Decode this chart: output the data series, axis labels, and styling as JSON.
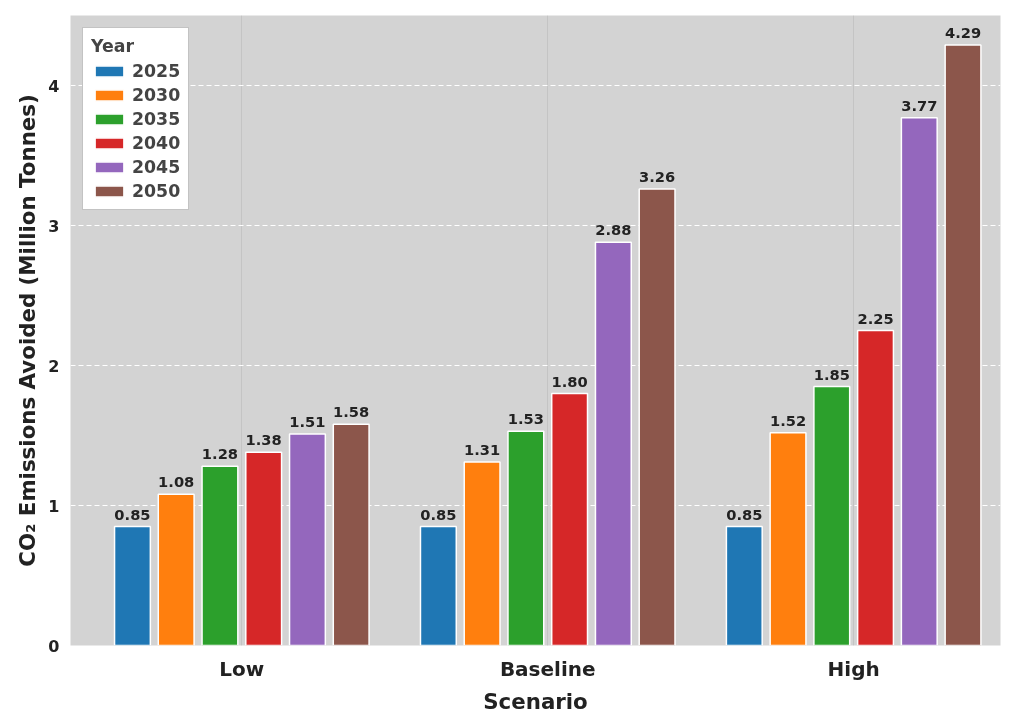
{
  "chart_data": {
    "type": "bar",
    "xlabel": "Scenario",
    "ylabel": "CO₂ Emissions Avoided (Million Tonnes)",
    "legend_title": "Year",
    "categories": [
      "Low",
      "Baseline",
      "High"
    ],
    "series": [
      {
        "name": "2025",
        "color": "#1f77b4",
        "values": [
          0.85,
          0.85,
          0.85
        ],
        "value_labels": [
          "0.85",
          "0.85",
          "0.85"
        ]
      },
      {
        "name": "2030",
        "color": "#ff7f0e",
        "values": [
          1.08,
          1.31,
          1.52
        ],
        "value_labels": [
          "1.08",
          "1.31",
          "1.52"
        ]
      },
      {
        "name": "2035",
        "color": "#2ca02c",
        "values": [
          1.28,
          1.53,
          1.85
        ],
        "value_labels": [
          "1.28",
          "1.53",
          "1.85"
        ]
      },
      {
        "name": "2040",
        "color": "#d62728",
        "values": [
          1.38,
          1.8,
          2.25
        ],
        "value_labels": [
          "1.38",
          "1.80",
          "2.25"
        ]
      },
      {
        "name": "2045",
        "color": "#9467bd",
        "values": [
          1.51,
          2.88,
          3.77
        ],
        "value_labels": [
          "1.51",
          "2.88",
          "3.77"
        ]
      },
      {
        "name": "2050",
        "color": "#8c564b",
        "values": [
          1.58,
          3.26,
          4.29
        ],
        "value_labels": [
          "1.58",
          "3.26",
          "4.29"
        ]
      }
    ],
    "ylim": [
      0,
      4.5
    ],
    "yticks": [
      0,
      1,
      2,
      3,
      4
    ],
    "grid": true,
    "legend": "top left"
  }
}
